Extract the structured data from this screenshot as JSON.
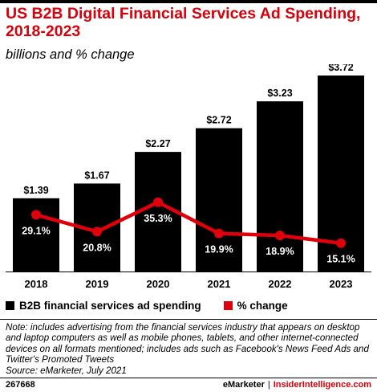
{
  "header": {
    "title": "US B2B Digital Financial Services Ad Spending, 2018-2023",
    "subtitle": "billions and % change"
  },
  "chart_data": {
    "type": "bar",
    "categories": [
      "2018",
      "2019",
      "2020",
      "2021",
      "2022",
      "2023"
    ],
    "series": [
      {
        "name": "B2B financial services ad spending",
        "type": "bar",
        "values": [
          1.39,
          1.67,
          2.27,
          2.72,
          3.23,
          3.72
        ],
        "labels": [
          "$1.39",
          "$1.67",
          "$2.27",
          "$2.72",
          "$3.23",
          "$3.72"
        ],
        "color": "#000000"
      },
      {
        "name": "% change",
        "type": "line",
        "values": [
          29.1,
          20.8,
          35.3,
          19.9,
          18.9,
          15.1
        ],
        "labels": [
          "29.1%",
          "20.8%",
          "35.3%",
          "19.9%",
          "18.9%",
          "15.1%"
        ],
        "color": "#e0000b"
      }
    ],
    "grid": false,
    "legend_position": "bottom-left"
  },
  "legend": {
    "bar_label": "B2B financial services ad spending",
    "line_label": "% change"
  },
  "note": "Note: includes advertising from the financial services industry that appears on desktop and laptop computers as well as mobile phones, tablets, and other internet-connected devices on all formats mentioned; includes ads such as Facebook's News Feed Ads and Twitter's Promoted Tweets",
  "source": "Source: eMarketer, July 2021",
  "footer": {
    "chart_id": "267668",
    "brand_left": "eMarketer",
    "separator": "|",
    "brand_right": "InsiderIntelligence.com"
  }
}
